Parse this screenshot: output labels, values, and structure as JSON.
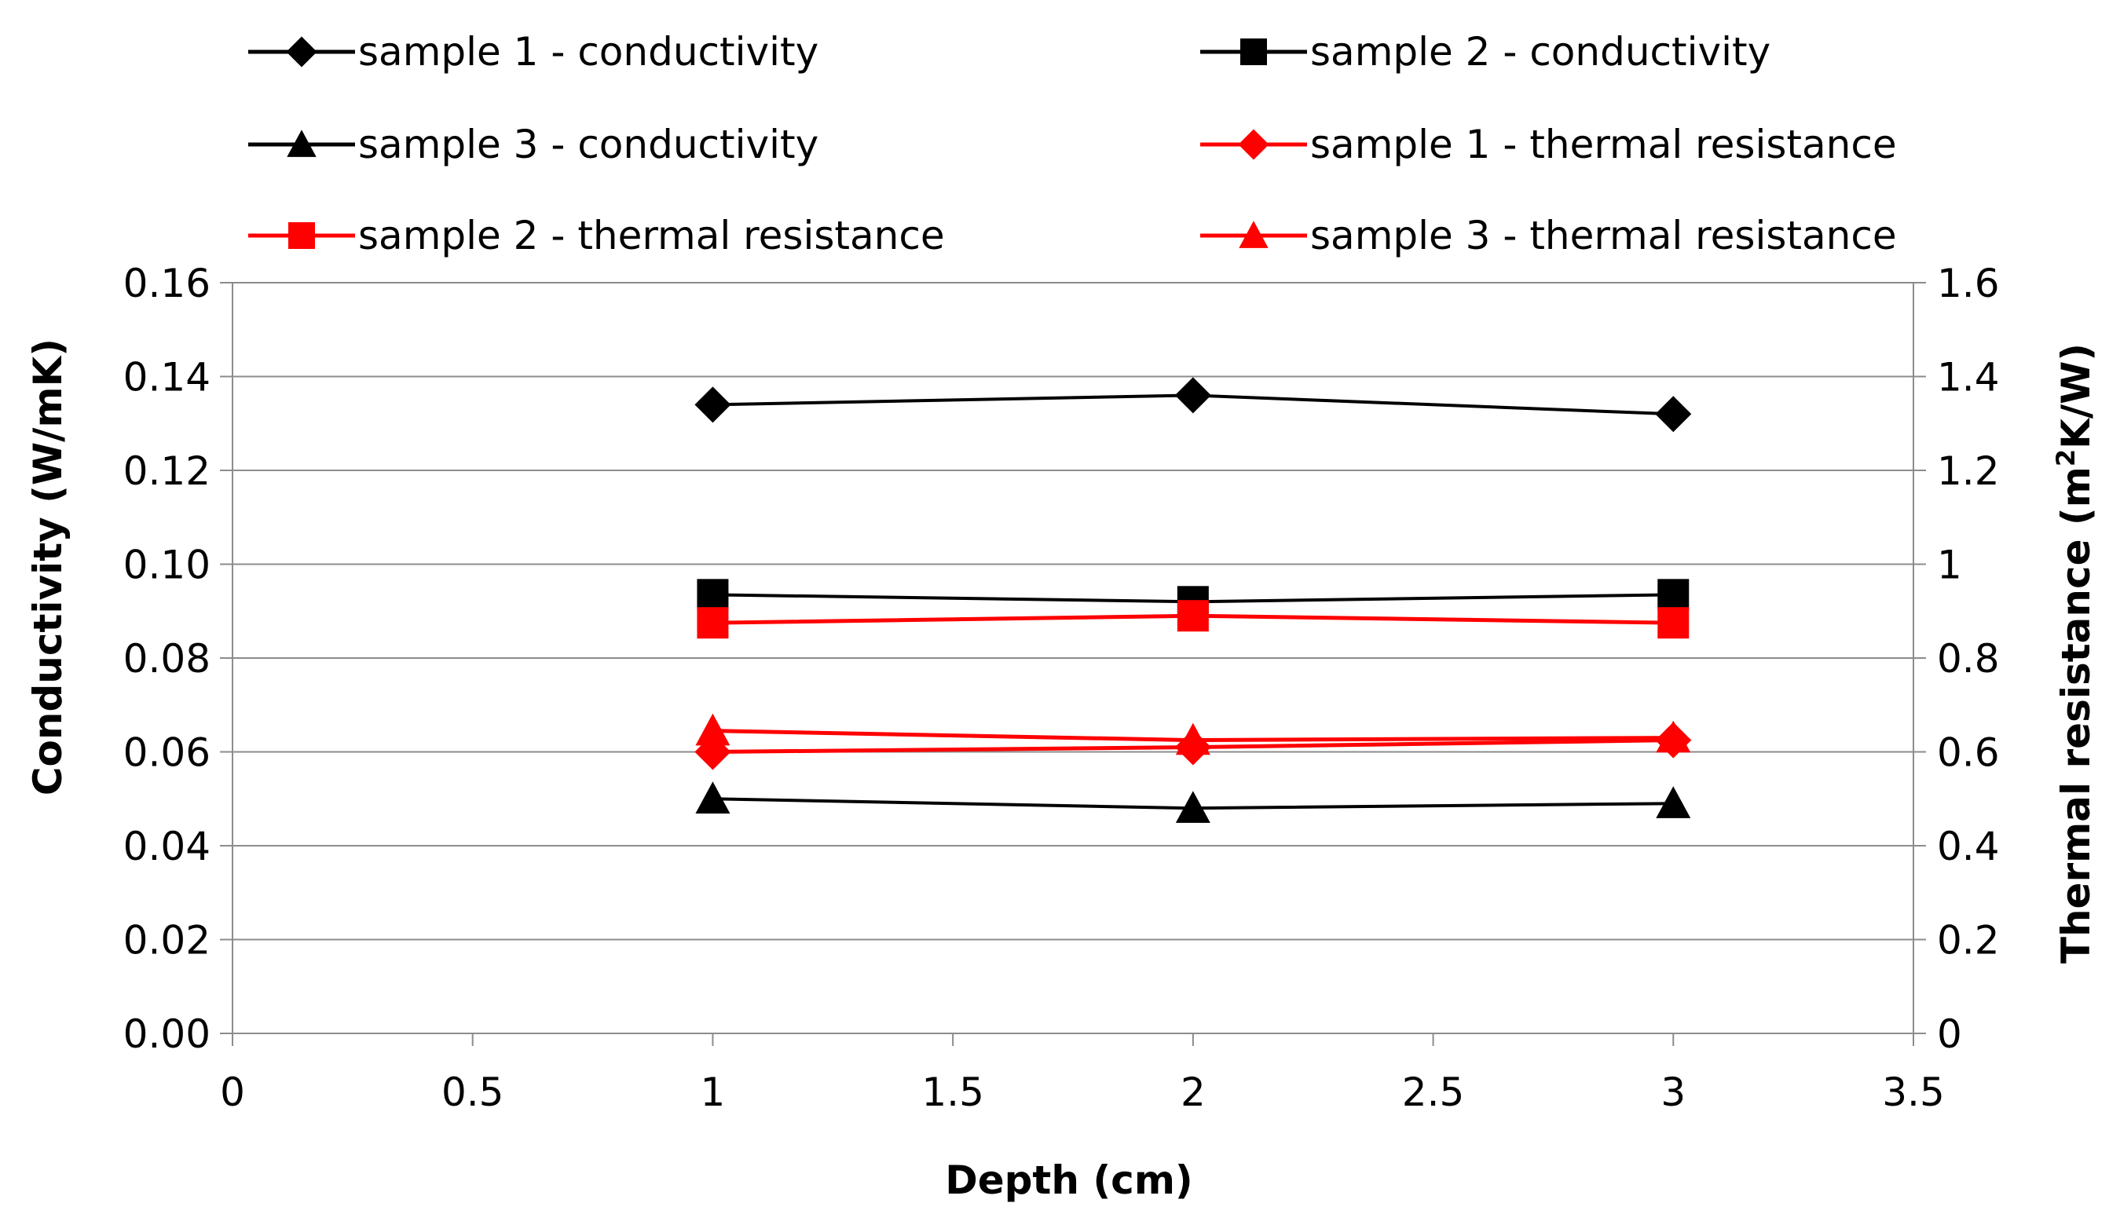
{
  "chart_data": {
    "type": "line",
    "title": "",
    "xlabel": "Depth (cm)",
    "ylabel": "Conductivity (W/mK)",
    "y2label_base": "Thermal resistance (m",
    "y2label_sup": "2",
    "y2label_tail": "K/W)",
    "xlim": [
      0,
      3.5
    ],
    "ylim": [
      0,
      0.16
    ],
    "y2lim": [
      0,
      1.6
    ],
    "x_ticks": [
      "0",
      "0.5",
      "1",
      "1.5",
      "2",
      "2.5",
      "3",
      "3.5"
    ],
    "y_ticks": [
      "0.00",
      "0.02",
      "0.04",
      "0.06",
      "0.08",
      "0.10",
      "0.12",
      "0.14",
      "0.16"
    ],
    "y2_ticks": [
      "0",
      "0.2",
      "0.4",
      "0.6",
      "0.8",
      "1",
      "1.2",
      "1.4",
      "1.6"
    ],
    "grid": true,
    "legend_position": "top",
    "series": [
      {
        "name": "sample 1 - conductivity",
        "axis": "left",
        "color": "#000000",
        "marker": "diamond",
        "x": [
          1,
          2,
          3
        ],
        "values": [
          0.134,
          0.136,
          0.132
        ]
      },
      {
        "name": "sample 2 - conductivity",
        "axis": "left",
        "color": "#000000",
        "marker": "square",
        "x": [
          1,
          2,
          3
        ],
        "values": [
          0.0935,
          0.092,
          0.0935
        ]
      },
      {
        "name": "sample 3 - conductivity",
        "axis": "left",
        "color": "#000000",
        "marker": "triangle",
        "x": [
          1,
          2,
          3
        ],
        "values": [
          0.05,
          0.048,
          0.049
        ]
      },
      {
        "name": "sample 1 - thermal resistance",
        "axis": "right",
        "color": "#ff0000",
        "marker": "diamond",
        "x": [
          1,
          2,
          3
        ],
        "values": [
          0.6,
          0.61,
          0.625
        ]
      },
      {
        "name": "sample 2 - thermal resistance",
        "axis": "right",
        "color": "#ff0000",
        "marker": "square",
        "x": [
          1,
          2,
          3
        ],
        "values": [
          0.875,
          0.89,
          0.875
        ]
      },
      {
        "name": "sample 3 - thermal resistance",
        "axis": "right",
        "color": "#ff0000",
        "marker": "triangle",
        "x": [
          1,
          2,
          3
        ],
        "values": [
          0.645,
          0.625,
          0.63
        ]
      }
    ]
  }
}
